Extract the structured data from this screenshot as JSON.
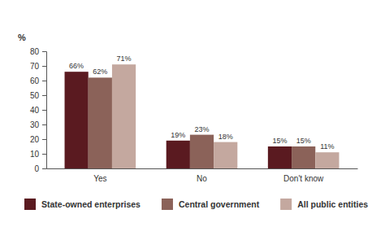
{
  "chart_data": {
    "type": "bar",
    "ylabel": "%",
    "categories": [
      "Yes",
      "No",
      "Don't know"
    ],
    "series": [
      {
        "name": "State-owned enterprises",
        "color": "#5a1a20",
        "values": [
          66,
          19,
          15
        ],
        "value_labels": [
          "66%",
          "19%",
          "15%"
        ]
      },
      {
        "name": "Central government",
        "color": "#8b6259",
        "values": [
          62,
          23,
          15
        ],
        "value_labels": [
          "62%",
          "23%",
          "15%"
        ]
      },
      {
        "name": "All public entities",
        "color": "#c4a89f",
        "values": [
          71,
          18,
          11
        ],
        "value_labels": [
          "71%",
          "18%",
          "11%"
        ]
      }
    ],
    "ylim": [
      0,
      80
    ],
    "yticks": [
      0,
      10,
      20,
      30,
      40,
      50,
      60,
      70,
      80
    ],
    "grid": false,
    "data_labels": true,
    "legend": "bottom"
  }
}
